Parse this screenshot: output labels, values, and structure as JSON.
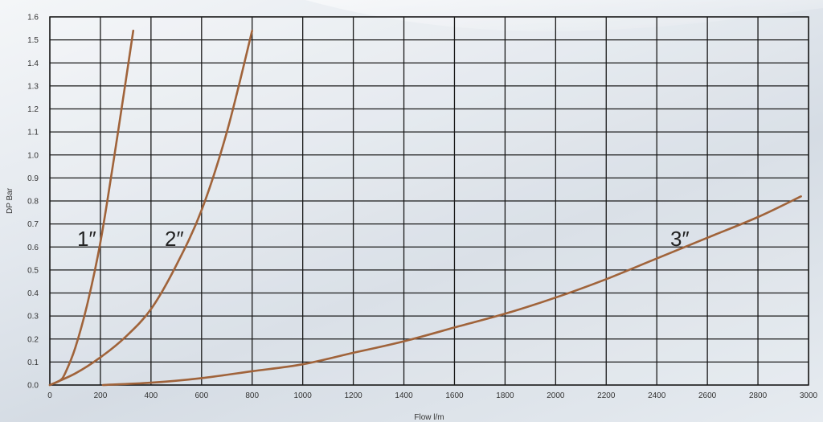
{
  "chart_data": {
    "type": "line",
    "xlabel": "Flow l/m",
    "ylabel": "DP Bar",
    "xlim": [
      0,
      3000
    ],
    "ylim": [
      0,
      1.6
    ],
    "x_ticks": [
      0,
      200,
      400,
      600,
      800,
      1000,
      1200,
      1400,
      1600,
      1800,
      2000,
      2200,
      2400,
      2600,
      2800,
      3000
    ],
    "y_ticks": [
      "0.0",
      "0.1",
      "0.2",
      "0.3",
      "0.4",
      "0.5",
      "0.6",
      "0.7",
      "0.8",
      "0.9",
      "1.0",
      "1.1",
      "1.2",
      "1.3",
      "1.4",
      "1.5",
      "1.6"
    ],
    "grid": true,
    "line_color": "#a0633a",
    "series": [
      {
        "name": "1″",
        "label": "1″",
        "x": [
          0,
          40,
          60,
          100,
          150,
          200,
          250,
          300,
          330
        ],
        "y": [
          0,
          0.02,
          0.05,
          0.16,
          0.36,
          0.62,
          0.96,
          1.32,
          1.54
        ]
      },
      {
        "name": "2″",
        "label": "2″",
        "x": [
          0,
          100,
          200,
          300,
          400,
          500,
          600,
          700,
          800
        ],
        "y": [
          0,
          0.05,
          0.12,
          0.21,
          0.33,
          0.52,
          0.76,
          1.1,
          1.54
        ]
      },
      {
        "name": "3″",
        "label": "3″",
        "x": [
          210,
          400,
          600,
          800,
          1000,
          1200,
          1400,
          1600,
          1800,
          2000,
          2200,
          2400,
          2600,
          2800,
          2970
        ],
        "y": [
          0,
          0.01,
          0.03,
          0.06,
          0.09,
          0.14,
          0.19,
          0.25,
          0.31,
          0.38,
          0.46,
          0.55,
          0.64,
          0.73,
          0.82
        ]
      }
    ]
  }
}
